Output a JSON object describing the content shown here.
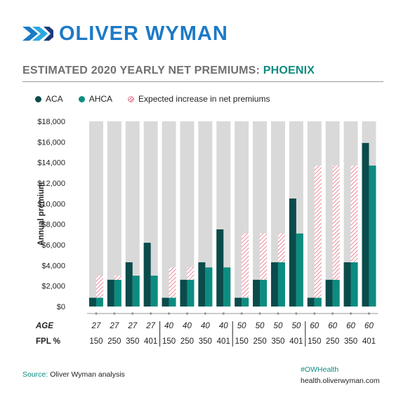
{
  "brand": {
    "name": "OLIVER WYMAN",
    "color": "#1c7ac7",
    "logo_icon": "oliver-wyman-logo-icon"
  },
  "title": {
    "prefix": "ESTIMATED 2020 YEARLY NET PREMIUMS:",
    "city": "PHOENIX"
  },
  "legend": [
    {
      "label": "ACA",
      "color": "#0b4b4b",
      "style": "solid"
    },
    {
      "label": "AHCA",
      "color": "#0c8c80",
      "style": "solid"
    },
    {
      "label": "Expected increase in net premiums",
      "color": "#e9899a",
      "style": "hatched"
    }
  ],
  "row_labels": {
    "age": "AGE",
    "fpl": "FPL %"
  },
  "source": {
    "label": "Source:",
    "text": "Oliver Wyman analysis"
  },
  "hashtag": "#OWHealth",
  "url": "health.oliverwyman.com",
  "chart_data": {
    "type": "bar",
    "title": "ESTIMATED 2020 YEARLY NET PREMIUMS: PHOENIX",
    "ylabel": "Annual premium",
    "ylim": [
      0,
      18000
    ],
    "yticks": [
      "$0",
      "$2,000",
      "$4,000",
      "$6,000",
      "$8,000",
      "$10,000",
      "$12,000",
      "$14,000",
      "$16,000",
      "$18,000"
    ],
    "grid": false,
    "legend_position": "top-left",
    "background_columns": true,
    "ages": [
      "27",
      "27",
      "27",
      "27",
      "40",
      "40",
      "40",
      "40",
      "50",
      "50",
      "50",
      "50",
      "60",
      "60",
      "60",
      "60"
    ],
    "fpl": [
      "150",
      "250",
      "350",
      "401",
      "150",
      "250",
      "350",
      "401",
      "150",
      "250",
      "350",
      "401",
      "150",
      "250",
      "350",
      "401"
    ],
    "series": [
      {
        "name": "ACA",
        "values": [
          850,
          2600,
          4300,
          6200,
          850,
          2600,
          4300,
          7500,
          850,
          2600,
          4300,
          10500,
          850,
          2600,
          4300,
          15900
        ]
      },
      {
        "name": "AHCA",
        "values": [
          850,
          2600,
          3000,
          3000,
          850,
          2600,
          3800,
          3800,
          850,
          2600,
          4300,
          7100,
          850,
          2600,
          4300,
          13700
        ]
      },
      {
        "name": "Expected increase in net premiums",
        "values": [
          3000,
          3000,
          0,
          0,
          3800,
          3800,
          0,
          0,
          7100,
          7100,
          7100,
          0,
          13700,
          13700,
          13700,
          0
        ]
      }
    ]
  }
}
